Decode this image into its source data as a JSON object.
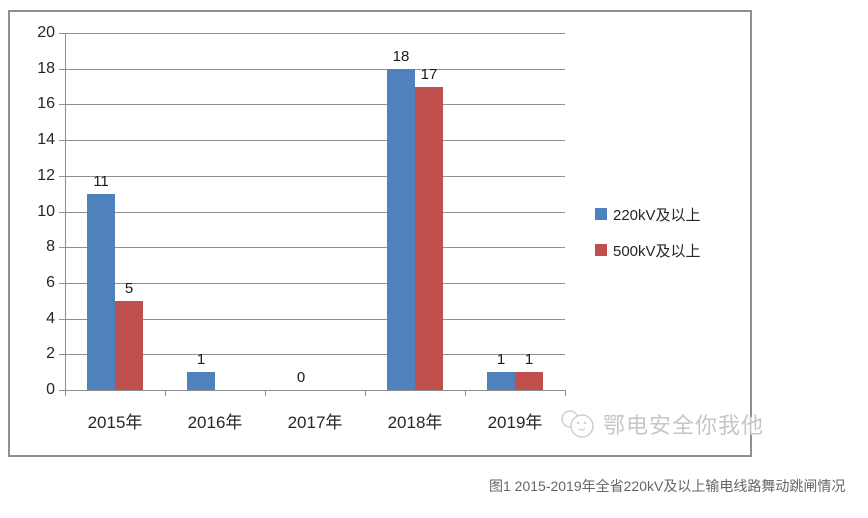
{
  "chart_data": {
    "type": "bar",
    "categories": [
      "2015年",
      "2016年",
      "2017年",
      "2018年",
      "2019年"
    ],
    "series": [
      {
        "name": "220kV及以上",
        "color": "#4F81BD",
        "values": [
          11,
          1,
          0,
          18,
          1
        ]
      },
      {
        "name": "500kV及以上",
        "color": "#C0504D",
        "values": [
          5,
          null,
          null,
          17,
          1
        ]
      }
    ],
    "title": "",
    "xlabel": "",
    "ylabel": "",
    "ylim": [
      0,
      20
    ],
    "ystep": 2,
    "yticks": [
      0,
      2,
      4,
      6,
      8,
      10,
      12,
      14,
      16,
      18,
      20
    ],
    "grid": true,
    "data_labels": true,
    "legend_position": "right"
  },
  "watermark": {
    "text": "鄂电安全你我他",
    "icon": "overlapping-circles-logo"
  },
  "caption": {
    "text": "图1  2015-2019年全省220kV及以上输电线路舞动跳闸情况"
  },
  "colors": {
    "series_220kv": "#4F81BD",
    "series_500kv": "#C0504D",
    "gridline": "#8F8F8F",
    "frame_border": "#8F8F8F",
    "tick_text": "#262626",
    "value_label_text": "#1A1A1A",
    "caption_text": "#666666",
    "watermark_text": "#C6C6C6"
  }
}
